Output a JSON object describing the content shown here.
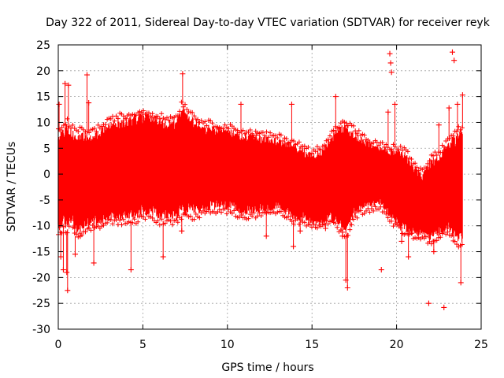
{
  "colors": {
    "series": "#ff0000",
    "grid": "#a0a0a0",
    "axis": "#000000",
    "background": "#ffffff"
  },
  "chart_data": {
    "type": "scatter",
    "title": "Day 322 of 2011, Sidereal Day-to-day VTEC variation (SDTVAR) for receiver reyk",
    "xlabel": "GPS time / hours",
    "ylabel": "SDTVAR / TECUs",
    "xlim": [
      0,
      25
    ],
    "ylim": [
      -30,
      25
    ],
    "xticks": [
      0,
      5,
      10,
      15,
      20,
      25
    ],
    "yticks": [
      -30,
      -25,
      -20,
      -15,
      -10,
      -5,
      0,
      5,
      10,
      15,
      20,
      25
    ],
    "xtick_labels": [
      "0",
      "5",
      "10",
      "15",
      "20",
      "25"
    ],
    "ytick_labels": [
      "-30",
      "-25",
      "-20",
      "-15",
      "-10",
      "-5",
      "0",
      "5",
      "10",
      "15",
      "20",
      "25"
    ],
    "grid": true,
    "marker": "+",
    "series": [
      {
        "name": "SDTVAR",
        "envelope_hours": [
          0.0,
          0.3,
          0.5,
          0.8,
          1.0,
          1.5,
          2.0,
          2.5,
          3.0,
          3.5,
          4.0,
          4.5,
          5.0,
          5.5,
          6.0,
          6.5,
          7.0,
          7.3,
          7.5,
          7.8,
          8.0,
          8.5,
          9.0,
          10.0,
          11.0,
          12.0,
          13.0,
          13.5,
          14.0,
          14.5,
          15.0,
          15.5,
          16.0,
          16.5,
          17.0,
          17.3,
          17.5,
          18.0,
          18.5,
          19.0,
          19.5,
          20.0,
          20.5,
          21.0,
          21.5,
          22.0,
          22.5,
          23.0,
          23.5,
          23.9
        ],
        "envelope_upper": [
          8,
          9,
          10,
          9,
          8,
          8.5,
          8,
          9,
          10,
          11,
          11,
          11.5,
          12,
          11.5,
          11,
          10.5,
          11,
          13.5,
          13,
          12,
          11,
          10,
          9.5,
          9,
          8,
          7.5,
          7,
          6.5,
          6,
          5,
          4,
          5,
          7,
          9,
          10,
          9,
          8.5,
          7,
          6,
          5.5,
          5,
          5,
          4.5,
          2,
          0,
          3,
          4,
          6,
          8,
          9
        ],
        "envelope_lower": [
          -12,
          -10,
          -11,
          -9,
          -12,
          -11,
          -10,
          -10,
          -9,
          -9,
          -9,
          -9,
          -8,
          -8,
          -9,
          -9,
          -9,
          -8,
          -8,
          -8,
          -8,
          -7.5,
          -7,
          -7,
          -8,
          -7.5,
          -7,
          -8,
          -9,
          -9,
          -10,
          -10,
          -9,
          -10,
          -12,
          -10,
          -8,
          -7,
          -6.5,
          -6,
          -8,
          -10,
          -11,
          -12,
          -12,
          -13,
          -12,
          -11,
          -13,
          -14
        ],
        "outliers": [
          [
            0.05,
            13.5
          ],
          [
            0.15,
            -16
          ],
          [
            0.3,
            -18.5
          ],
          [
            0.4,
            17.5
          ],
          [
            0.5,
            -19
          ],
          [
            0.55,
            -22.5
          ],
          [
            0.6,
            17.2
          ],
          [
            1.0,
            -15.5
          ],
          [
            1.3,
            -12
          ],
          [
            1.7,
            19.2
          ],
          [
            1.8,
            13.8
          ],
          [
            2.1,
            -17.2
          ],
          [
            4.3,
            -18.5
          ],
          [
            6.2,
            -16
          ],
          [
            7.35,
            19.4
          ],
          [
            7.3,
            -11
          ],
          [
            10.8,
            13.5
          ],
          [
            11.7,
            7.5
          ],
          [
            12.3,
            -12
          ],
          [
            13.8,
            13.5
          ],
          [
            13.9,
            -14
          ],
          [
            14.3,
            -11
          ],
          [
            15.8,
            -10.5
          ],
          [
            16.4,
            15
          ],
          [
            16.8,
            -12
          ],
          [
            17.0,
            -20.5
          ],
          [
            17.1,
            -22
          ],
          [
            19.1,
            -18.5
          ],
          [
            19.5,
            12
          ],
          [
            19.6,
            23.3
          ],
          [
            19.65,
            21.5
          ],
          [
            19.7,
            19.7
          ],
          [
            19.9,
            13.5
          ],
          [
            20.3,
            -13
          ],
          [
            20.7,
            -16
          ],
          [
            21.9,
            -25
          ],
          [
            22.2,
            -15
          ],
          [
            22.5,
            9.5
          ],
          [
            22.8,
            -25.8
          ],
          [
            23.1,
            12.8
          ],
          [
            23.3,
            23.6
          ],
          [
            23.4,
            22
          ],
          [
            23.6,
            13.5
          ],
          [
            23.8,
            -21
          ],
          [
            23.9,
            15.3
          ]
        ]
      }
    ]
  }
}
